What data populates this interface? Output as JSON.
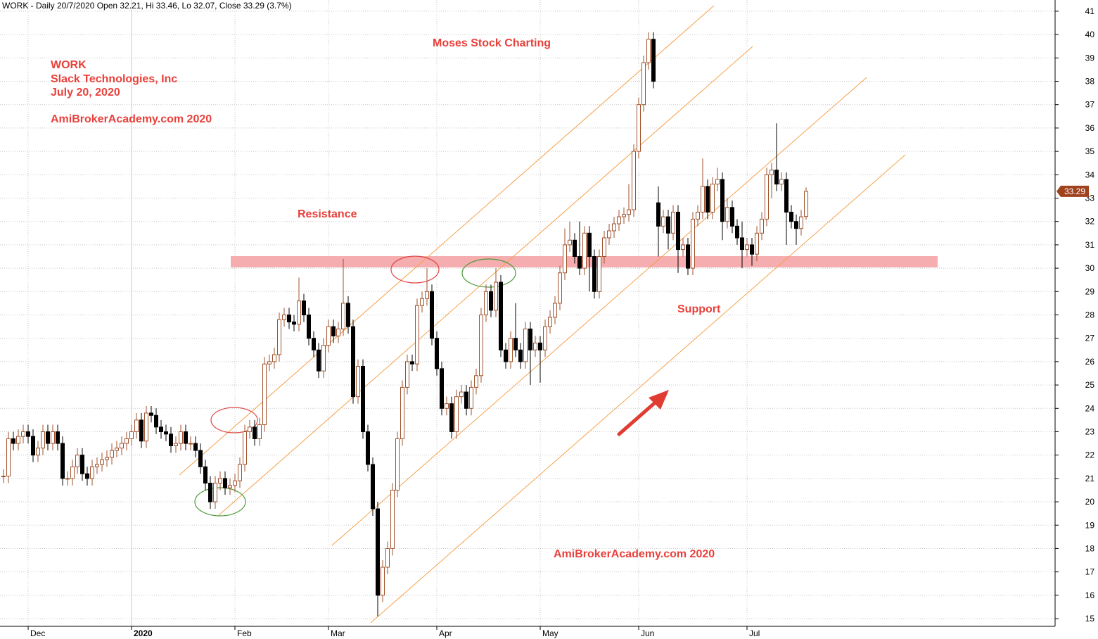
{
  "chart_data": {
    "type": "candlestick",
    "title": "WORK - Daily 20/7/2020 Open 32.21, Hi 33.46, Lo 32.07, Close 33.29 (3.7%)",
    "annotations": [
      "WORK",
      "Slack Technologies, Inc",
      "July 20, 2020",
      "AmiBrokerAcademy.com  2020",
      "Moses Stock Charting",
      "Resistance",
      "Support",
      "AmiBrokerAcademy.com  2020"
    ],
    "categories": [
      null,
      null,
      null,
      null,
      null,
      "Dec",
      null,
      null,
      null,
      null,
      null,
      null,
      null,
      null,
      null,
      null,
      null,
      null,
      null,
      null,
      null,
      null,
      null,
      null,
      null,
      null,
      "2020",
      null,
      null,
      null,
      null,
      null,
      null,
      null,
      null,
      null,
      null,
      null,
      null,
      null,
      null,
      null,
      null,
      null,
      null,
      null,
      null,
      "Feb",
      null,
      null,
      null,
      null,
      null,
      null,
      null,
      null,
      null,
      null,
      null,
      null,
      null,
      null,
      null,
      null,
      null,
      null,
      "Mar",
      null,
      null,
      null,
      null,
      null,
      null,
      null,
      null,
      null,
      null,
      null,
      null,
      null,
      null,
      null,
      null,
      null,
      null,
      null,
      null,
      null,
      "Apr",
      null,
      null,
      null,
      null,
      null,
      null,
      null,
      null,
      null,
      null,
      null,
      null,
      null,
      null,
      null,
      null,
      null,
      null,
      null,
      null,
      "May",
      null,
      null,
      null,
      null,
      null,
      null,
      null,
      null,
      null,
      null,
      null,
      null,
      null,
      null,
      null,
      null,
      null,
      null,
      null,
      "Jun",
      null,
      null,
      null,
      null,
      null,
      null,
      null,
      null,
      null,
      null,
      null,
      null,
      null,
      null,
      null,
      null,
      null,
      null,
      null,
      null,
      null,
      "Jul",
      null,
      null,
      null,
      null,
      null,
      null,
      null,
      null,
      null,
      null,
      null,
      null
    ],
    "open": [
      21.1,
      21.1,
      22.7,
      22.5,
      22.8,
      23.0,
      22.8,
      22.0,
      22.3,
      23.0,
      22.5,
      23.0,
      22.5,
      21.0,
      21.0,
      21.5,
      22.0,
      21.2,
      21.0,
      21.5,
      21.6,
      21.8,
      21.9,
      22.2,
      22.3,
      22.5,
      22.7,
      23.0,
      23.5,
      22.6,
      23.8,
      23.7,
      23.2,
      23.0,
      22.9,
      22.4,
      22.5,
      23.0,
      22.5,
      22.5,
      22.2,
      21.5,
      20.8,
      20.0,
      20.8,
      21.0,
      20.6,
      20.7,
      20.9,
      21.6,
      23.0,
      23.2,
      22.7,
      23.3,
      25.9,
      26.0,
      26.3,
      27.8,
      28.0,
      27.7,
      27.6,
      28.6,
      28.0,
      27.0,
      26.5,
      25.6,
      26.7,
      27.5,
      27.1,
      27.4,
      28.5,
      27.5,
      24.5,
      25.8,
      23.0,
      21.6,
      19.7,
      16.0,
      17.2,
      18.0,
      20.5,
      22.7,
      24.9,
      26.0,
      25.9,
      28.4,
      28.7,
      29.0,
      27.0,
      25.7,
      24.0,
      24.2,
      23.0,
      24.5,
      24.7,
      24.0,
      24.9,
      25.4,
      28.0,
      29.0,
      28.2,
      29.4,
      26.5,
      26.0,
      27.0,
      26.5,
      26.0,
      27.4,
      26.5,
      26.8,
      26.5,
      27.5,
      27.9,
      28.5,
      29.8,
      31.0,
      31.2,
      30.5,
      30.0,
      31.5,
      30.5,
      29.0,
      30.5,
      31.3,
      31.6,
      31.9,
      32.2,
      32.3,
      32.5,
      35.0,
      37.0,
      38.8,
      39.8,
      32.8,
      31.8,
      32.2,
      31.5,
      32.4,
      30.8,
      31.0,
      30.0,
      32.1,
      32.4,
      33.5,
      32.4,
      33.6,
      33.8,
      32.0,
      32.6,
      31.8,
      31.3,
      30.8,
      31.0,
      30.6,
      31.5,
      32.1,
      34.0,
      34.2,
      33.6,
      33.8,
      32.4,
      32.0,
      31.7,
      32.21
    ],
    "high": [
      21.4,
      23.0,
      23.0,
      23.1,
      23.3,
      23.3,
      23.1,
      22.6,
      23.3,
      23.3,
      23.3,
      23.3,
      22.8,
      21.3,
      21.8,
      22.3,
      22.3,
      21.5,
      21.8,
      21.9,
      22.1,
      22.2,
      22.5,
      22.6,
      22.8,
      23.0,
      23.3,
      23.8,
      23.8,
      24.1,
      24.1,
      24.0,
      23.5,
      23.3,
      23.2,
      22.8,
      23.3,
      23.3,
      22.8,
      22.8,
      22.5,
      21.8,
      21.1,
      21.1,
      21.3,
      21.3,
      21.0,
      21.2,
      21.9,
      23.3,
      23.5,
      23.5,
      23.6,
      26.2,
      26.3,
      26.6,
      28.1,
      28.3,
      28.3,
      28.0,
      29.6,
      28.9,
      28.3,
      27.3,
      26.8,
      27.0,
      27.8,
      27.8,
      27.7,
      30.4,
      28.8,
      27.8,
      26.1,
      26.1,
      23.3,
      21.9,
      20.0,
      17.5,
      18.3,
      20.8,
      23.0,
      25.2,
      26.3,
      26.3,
      28.7,
      29.0,
      30.0,
      29.3,
      27.3,
      26.0,
      24.5,
      24.5,
      24.8,
      25.0,
      25.0,
      25.2,
      25.7,
      28.3,
      29.3,
      29.3,
      30.0,
      29.7,
      26.8,
      27.3,
      28.5,
      26.8,
      27.7,
      27.7,
      27.1,
      27.1,
      27.8,
      28.2,
      28.8,
      30.1,
      31.7,
      32.0,
      31.5,
      32.0,
      31.8,
      31.8,
      30.8,
      30.8,
      31.6,
      31.9,
      32.2,
      32.5,
      32.6,
      33.6,
      35.3,
      37.3,
      39.1,
      40.1,
      40.1,
      33.5,
      32.5,
      32.5,
      32.7,
      32.7,
      31.3,
      31.3,
      32.4,
      32.7,
      34.7,
      33.8,
      33.9,
      34.3,
      34.1,
      33.0,
      32.9,
      32.1,
      32.0,
      31.3,
      31.3,
      31.8,
      32.4,
      34.3,
      34.5,
      36.2,
      34.1,
      34.1,
      32.7,
      32.3,
      32.5,
      33.46
    ],
    "low": [
      20.8,
      20.8,
      22.2,
      22.2,
      22.5,
      22.5,
      21.7,
      21.7,
      22.0,
      22.2,
      22.2,
      22.2,
      20.7,
      20.7,
      20.7,
      21.2,
      20.9,
      20.7,
      20.7,
      21.2,
      21.3,
      21.5,
      21.6,
      21.9,
      22.0,
      22.2,
      22.4,
      22.7,
      22.3,
      22.3,
      23.4,
      22.9,
      22.7,
      22.6,
      22.1,
      22.1,
      22.2,
      22.2,
      22.2,
      21.9,
      21.2,
      20.5,
      19.7,
      19.7,
      20.5,
      20.3,
      20.3,
      20.4,
      20.6,
      21.3,
      22.7,
      22.4,
      22.4,
      23.0,
      25.6,
      25.7,
      26.0,
      27.5,
      27.4,
      27.3,
      27.3,
      27.7,
      26.7,
      26.2,
      25.3,
      25.3,
      26.4,
      26.8,
      26.8,
      27.1,
      27.2,
      24.2,
      24.2,
      22.7,
      21.3,
      19.4,
      15.1,
      15.7,
      16.9,
      17.7,
      20.2,
      22.4,
      24.6,
      25.6,
      25.6,
      28.1,
      28.4,
      26.7,
      25.4,
      23.7,
      23.7,
      22.7,
      22.7,
      24.2,
      23.7,
      23.7,
      24.6,
      25.1,
      27.7,
      27.9,
      27.9,
      26.2,
      25.7,
      25.7,
      26.2,
      25.7,
      25.7,
      25.0,
      26.2,
      25.1,
      26.2,
      27.2,
      27.6,
      28.2,
      29.5,
      30.7,
      30.2,
      29.7,
      29.7,
      29.0,
      28.7,
      28.7,
      30.2,
      31.0,
      31.3,
      31.6,
      31.9,
      32.0,
      32.2,
      34.7,
      36.7,
      38.5,
      37.7,
      30.5,
      31.5,
      30.8,
      31.2,
      29.8,
      30.5,
      29.7,
      29.7,
      31.8,
      32.1,
      32.1,
      32.1,
      33.3,
      31.2,
      31.7,
      31.5,
      31.0,
      30.0,
      30.5,
      30.1,
      30.3,
      31.2,
      31.8,
      33.0,
      33.3,
      33.3,
      31.0,
      31.7,
      31.0,
      31.4,
      32.07
    ],
    "close": [
      21.1,
      22.7,
      22.5,
      22.8,
      23.0,
      22.8,
      22.0,
      22.3,
      23.0,
      22.5,
      23.0,
      22.5,
      21.0,
      21.0,
      21.5,
      22.0,
      21.2,
      21.0,
      21.5,
      21.6,
      21.8,
      21.9,
      22.2,
      22.3,
      22.5,
      22.7,
      23.0,
      23.5,
      22.6,
      23.8,
      23.7,
      23.2,
      23.0,
      22.9,
      22.4,
      22.5,
      23.0,
      22.5,
      22.5,
      22.2,
      21.5,
      20.8,
      20.0,
      20.8,
      21.0,
      20.6,
      20.7,
      20.9,
      21.6,
      23.0,
      23.2,
      22.7,
      23.3,
      25.9,
      26.0,
      26.3,
      27.8,
      28.0,
      27.7,
      27.6,
      28.6,
      28.0,
      27.0,
      26.5,
      25.6,
      26.7,
      27.5,
      27.1,
      27.4,
      28.5,
      27.5,
      24.5,
      25.8,
      23.0,
      21.6,
      19.7,
      16.0,
      17.2,
      18.0,
      20.5,
      22.7,
      24.9,
      26.0,
      25.9,
      28.4,
      28.7,
      29.0,
      27.0,
      25.7,
      24.0,
      24.2,
      23.0,
      24.5,
      24.7,
      24.0,
      24.9,
      25.4,
      28.0,
      29.0,
      28.2,
      29.4,
      26.5,
      26.0,
      27.0,
      26.5,
      26.0,
      27.4,
      26.5,
      26.8,
      26.5,
      27.5,
      27.9,
      28.5,
      29.8,
      31.0,
      31.2,
      30.5,
      30.0,
      31.5,
      30.5,
      29.0,
      30.5,
      31.3,
      31.6,
      31.9,
      32.2,
      32.3,
      32.5,
      35.0,
      37.0,
      38.8,
      39.8,
      38.0,
      31.8,
      32.2,
      31.5,
      32.4,
      30.8,
      31.0,
      30.0,
      32.1,
      32.4,
      33.5,
      32.4,
      33.6,
      33.8,
      32.0,
      32.6,
      31.8,
      31.3,
      30.8,
      31.0,
      30.6,
      31.5,
      32.1,
      34.0,
      34.2,
      33.6,
      33.8,
      32.4,
      32.0,
      31.7,
      32.2,
      33.29
    ],
    "ylim": [
      14.67,
      41.48
    ],
    "yticks": [
      15,
      16,
      17,
      18,
      19,
      20,
      21,
      22,
      23,
      24,
      25,
      26,
      27,
      28,
      29,
      30,
      31,
      32,
      33,
      34,
      35,
      36,
      37,
      38,
      39,
      40,
      41
    ],
    "grid": true,
    "up_color": "#a0522d",
    "down_color": "#000000",
    "last_price_color": "#a0421d"
  }
}
